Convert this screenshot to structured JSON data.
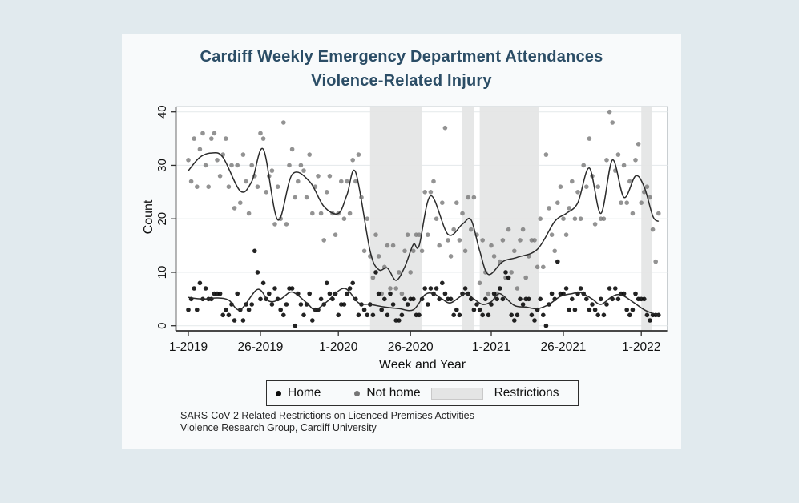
{
  "colors": {
    "page_background": "#e1eaee",
    "panel_background": "#f8fafb",
    "plot_background": "#ffffff",
    "gridline": "#e7ebed",
    "plot_border": "#c9ced1",
    "axis_line": "#2f2f2f",
    "title_text": "#2b4d66",
    "band_fill": "#e4e5e5",
    "home_point": "#0b0b0b",
    "not_home_point": "#757575",
    "lowess_line": "#2b2b2b"
  },
  "figure": {
    "title_line1": "Cardiff Weekly Emergency Department Attendances",
    "title_line2": "Violence-Related Injury",
    "footnote_line1": "SARS-CoV-2 Related Restrictions on Licenced Premises Activities",
    "footnote_line2": "Violence Research Group, Cardiff University"
  },
  "legend": {
    "home_label": "Home",
    "not_home_label": "Not home",
    "restrictions_label": "Restrictions"
  },
  "chart_data": {
    "type": "scatter",
    "title": "Cardiff Weekly Emergency Department Attendances - Violence-Related Injury",
    "xlabel": "Week and Year",
    "ylabel": "Count",
    "ylim": [
      0,
      40
    ],
    "y_ticks": [
      0,
      10,
      20,
      30,
      40
    ],
    "grid": true,
    "legend_position": "bottom",
    "x_unit": "week index starting at week 1 of 2019",
    "x_ticks": [
      {
        "week": 0,
        "label": "1-2019"
      },
      {
        "week": 25,
        "label": "26-2019"
      },
      {
        "week": 52,
        "label": "1-2020"
      },
      {
        "week": 77,
        "label": "26-2020"
      },
      {
        "week": 105,
        "label": "1-2021"
      },
      {
        "week": 130,
        "label": "26-2021"
      },
      {
        "week": 157,
        "label": "1-2022"
      }
    ],
    "restriction_bands_weeks": [
      [
        63,
        81
      ],
      [
        95,
        99
      ],
      [
        101,
        121.4
      ],
      [
        157,
        160.6
      ]
    ],
    "series": [
      {
        "name": "Home",
        "weekly_counts": [
          3,
          5,
          7,
          3,
          8,
          5,
          7,
          5,
          5,
          6,
          6,
          6,
          2,
          3,
          2,
          4,
          1,
          6,
          3,
          1,
          4,
          3,
          4,
          14,
          10,
          5,
          8,
          5,
          6,
          4,
          7,
          5,
          3,
          2,
          4,
          7,
          7,
          0,
          6,
          4,
          2,
          4,
          6,
          1,
          3,
          3,
          5,
          4,
          8,
          6,
          5,
          6,
          2,
          4,
          4,
          6,
          7,
          8,
          5,
          2,
          4,
          3,
          2,
          4,
          2,
          10,
          6,
          3,
          5,
          2,
          6,
          4,
          1,
          1,
          2,
          5,
          4,
          5,
          5,
          2,
          2,
          5,
          7,
          4,
          7,
          6,
          7,
          5,
          8,
          6,
          5,
          5,
          2,
          3,
          2,
          6,
          7,
          6,
          5,
          3,
          4,
          3,
          2,
          5,
          2,
          4,
          6,
          5,
          7,
          5,
          10,
          9,
          2,
          1,
          2,
          5,
          4,
          5,
          5,
          2,
          1,
          3,
          5,
          2,
          0,
          4,
          6,
          5,
          12,
          6,
          6,
          7,
          3,
          5,
          3,
          6,
          7,
          6,
          5,
          3,
          4,
          3,
          2,
          5,
          2,
          4,
          7,
          5,
          7,
          5,
          6,
          6,
          3,
          2,
          3,
          6,
          5,
          5,
          5,
          2,
          1,
          2,
          2,
          2
        ]
      },
      {
        "name": "Not home",
        "weekly_counts": [
          31,
          27,
          35,
          26,
          33,
          36,
          30,
          26,
          35,
          36,
          31,
          28,
          32,
          35,
          26,
          30,
          22,
          30,
          23,
          32,
          27,
          21,
          30,
          28,
          26,
          36,
          35,
          25,
          28,
          29,
          19,
          26,
          20,
          38,
          19,
          30,
          33,
          24,
          27,
          30,
          29,
          24,
          32,
          21,
          26,
          28,
          21,
          16,
          25,
          28,
          21,
          17,
          21,
          27,
          20,
          27,
          21,
          31,
          27,
          32,
          24,
          14,
          20,
          13,
          9,
          17,
          13,
          6,
          11,
          15,
          7,
          15,
          7,
          10,
          6,
          14,
          17,
          10,
          14,
          17,
          17,
          14,
          25,
          17,
          25,
          27,
          20,
          15,
          23,
          37,
          16,
          13,
          18,
          23,
          16,
          21,
          14,
          24,
          18,
          24,
          17,
          8,
          16,
          10,
          6,
          15,
          13,
          6,
          12,
          16,
          9,
          18,
          10,
          14,
          7,
          16,
          18,
          9,
          13,
          16,
          16,
          11,
          20,
          11,
          32,
          22,
          17,
          14,
          23,
          26,
          20,
          17,
          22,
          27,
          20,
          25,
          20,
          30,
          26,
          35,
          28,
          19,
          26,
          20,
          20,
          31,
          40,
          38,
          29,
          32,
          23,
          30,
          23,
          27,
          21,
          31,
          34,
          23,
          25,
          26,
          24,
          18,
          12,
          21
        ]
      }
    ],
    "smoothed_lines": [
      {
        "name": "Home (smoothed)",
        "anchors": [
          [
            0,
            5.3
          ],
          [
            5,
            5
          ],
          [
            10,
            5.2
          ],
          [
            14,
            4.8
          ],
          [
            18,
            3
          ],
          [
            24,
            6.8
          ],
          [
            28,
            4.6
          ],
          [
            32,
            5
          ],
          [
            36,
            6.3
          ],
          [
            41,
            4.3
          ],
          [
            44,
            3
          ],
          [
            48,
            4.5
          ],
          [
            54,
            7
          ],
          [
            59,
            4.3
          ],
          [
            63,
            4
          ],
          [
            68,
            3.5
          ],
          [
            73,
            3.2
          ],
          [
            78,
            3
          ],
          [
            82,
            5.8
          ],
          [
            85,
            6
          ],
          [
            88,
            5
          ],
          [
            91,
            4.3
          ],
          [
            96,
            6
          ],
          [
            99,
            5
          ],
          [
            102,
            4
          ],
          [
            105,
            4.5
          ],
          [
            108,
            6
          ],
          [
            113,
            3.8
          ],
          [
            117,
            3.5
          ],
          [
            121,
            3.2
          ],
          [
            125,
            4
          ],
          [
            129,
            5.5
          ],
          [
            133,
            6
          ],
          [
            136,
            6.2
          ],
          [
            140,
            5
          ],
          [
            143,
            4
          ],
          [
            147,
            5.5
          ],
          [
            150,
            5.8
          ],
          [
            154,
            4.5
          ],
          [
            158,
            3
          ],
          [
            161,
            2.3
          ],
          [
            163,
            2
          ]
        ]
      },
      {
        "name": "Not home (smoothed)",
        "anchors": [
          [
            0,
            29
          ],
          [
            4,
            31.5
          ],
          [
            8,
            32.3
          ],
          [
            12,
            31.5
          ],
          [
            18,
            25.2
          ],
          [
            22,
            27
          ],
          [
            26,
            33
          ],
          [
            31,
            19.8
          ],
          [
            36,
            28.3
          ],
          [
            42,
            27
          ],
          [
            47,
            22.3
          ],
          [
            52,
            21
          ],
          [
            55,
            24.5
          ],
          [
            58,
            28.7
          ],
          [
            63,
            14
          ],
          [
            66,
            10.5
          ],
          [
            69,
            10.8
          ],
          [
            72,
            8.5
          ],
          [
            75,
            11
          ],
          [
            78,
            15.2
          ],
          [
            80,
            15
          ],
          [
            84,
            24.3
          ],
          [
            90,
            17.1
          ],
          [
            95,
            19
          ],
          [
            98,
            19.8
          ],
          [
            101,
            14
          ],
          [
            104,
            9.6
          ],
          [
            109,
            12
          ],
          [
            114,
            12.8
          ],
          [
            121,
            14.3
          ],
          [
            127,
            19.5
          ],
          [
            131,
            21
          ],
          [
            135,
            23
          ],
          [
            139,
            29.5
          ],
          [
            143,
            21
          ],
          [
            147,
            31
          ],
          [
            151,
            24
          ],
          [
            155,
            28
          ],
          [
            158,
            26
          ],
          [
            161,
            20.5
          ],
          [
            163,
            19.5
          ]
        ]
      }
    ]
  }
}
